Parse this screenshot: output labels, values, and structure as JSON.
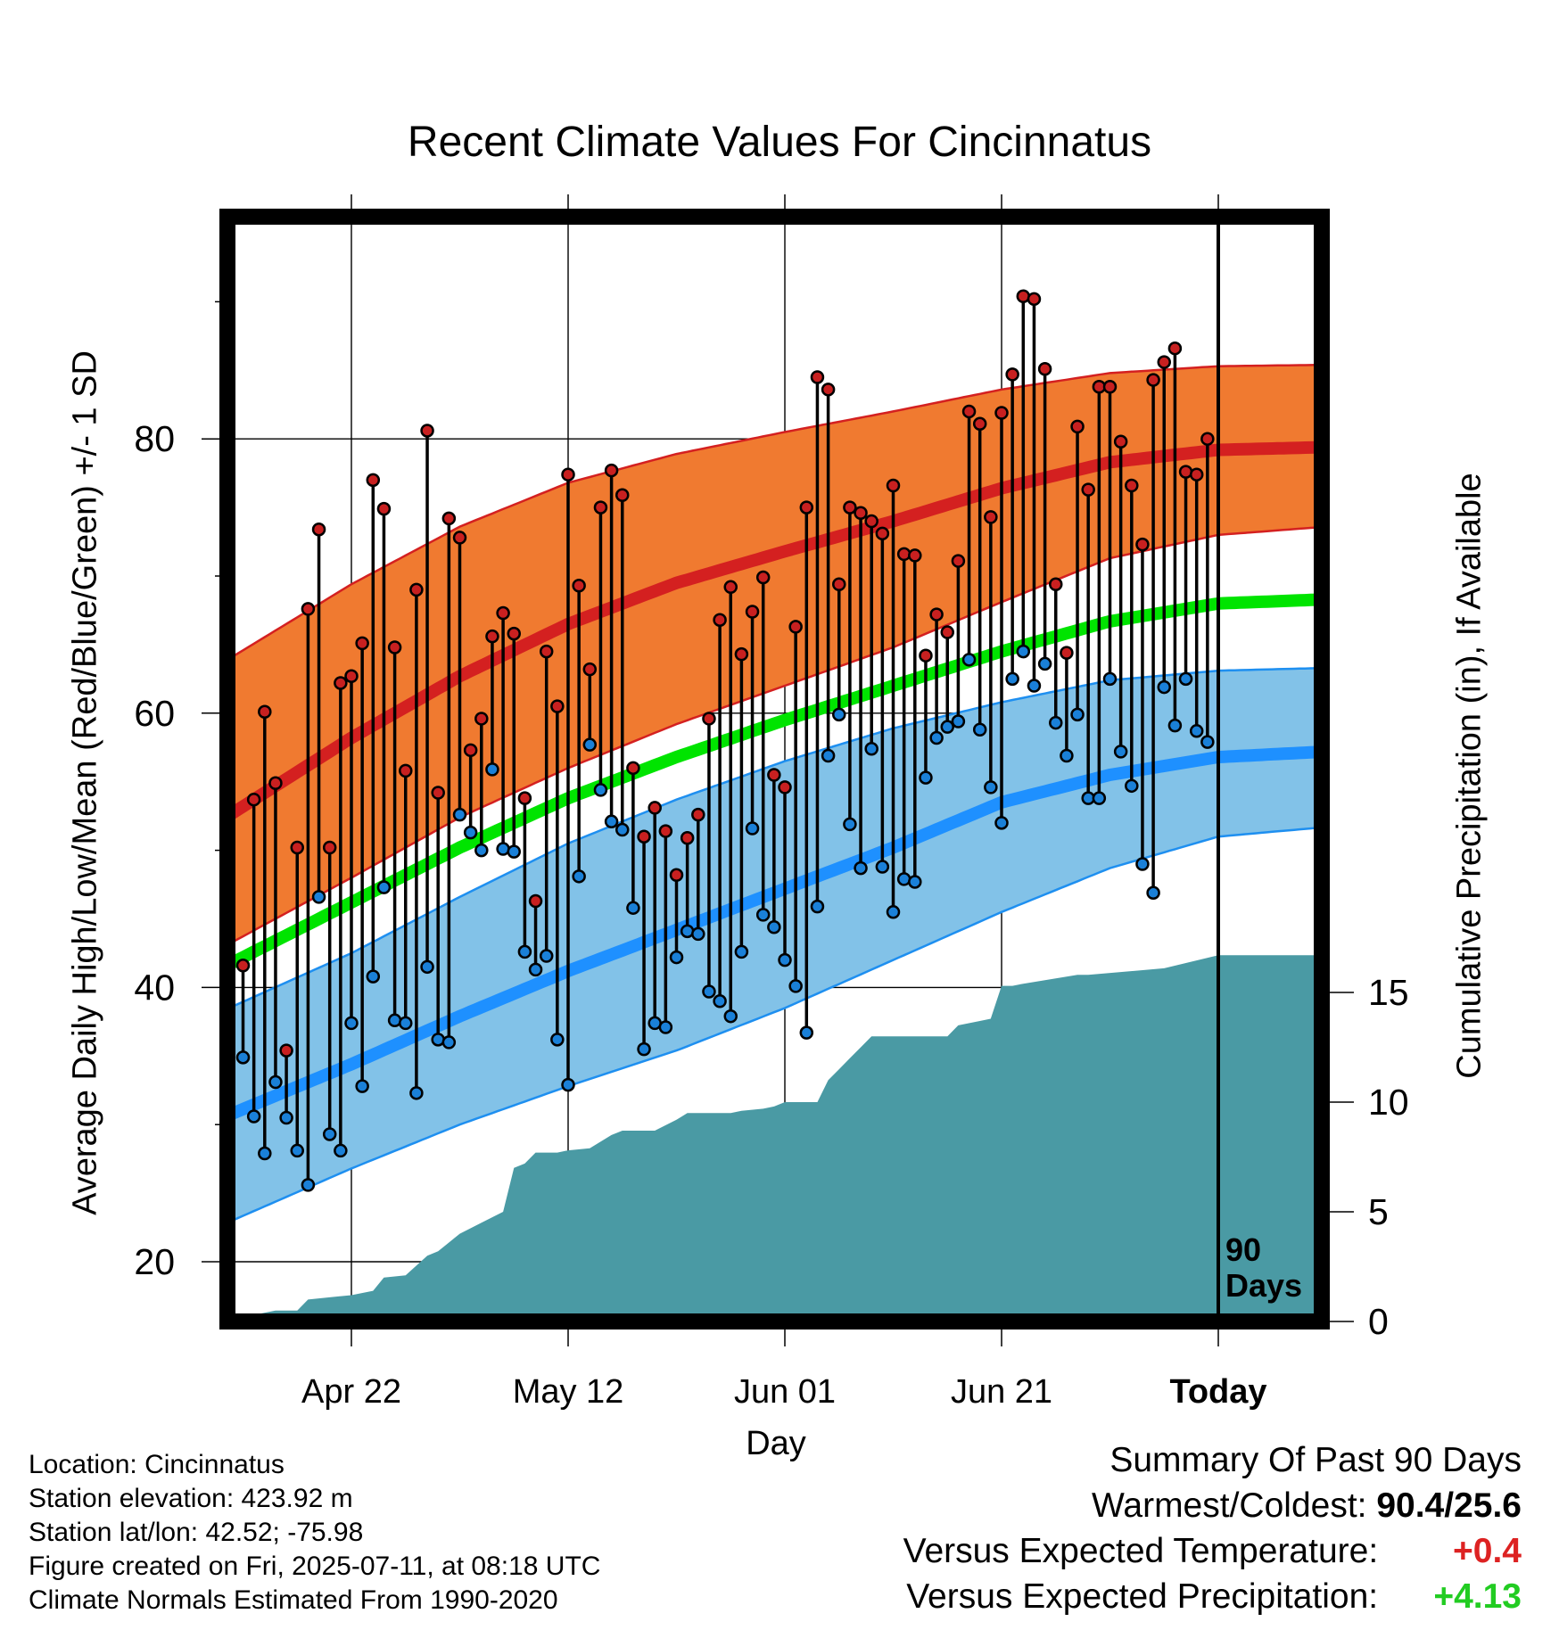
{
  "title": "Recent Climate Values For Cincinnatus",
  "axes": {
    "ylabel_left": "Average Daily High/Low/Mean (Red/Blue/Green) +/- 1 SD",
    "ylabel_right": "Cumulative Precipitation (in), If Available",
    "xlabel": "Day"
  },
  "today_marker": {
    "label_line1": "90",
    "label_line2": "Days"
  },
  "info": {
    "location": "Location: Cincinnatus",
    "elevation": "Station elevation: 423.92 m",
    "latlon": "Station lat/lon: 42.52; -75.98",
    "created": "Figure created on Fri, 2025-07-11, at 08:18 UTC",
    "normals": "Climate Normals Estimated From 1990-2020"
  },
  "summary": {
    "heading": "Summary Of Past 90 Days",
    "warmest_label": "Warmest/Coldest:",
    "warmest_value": "90.4/25.6",
    "temp_label": "Versus Expected Temperature:",
    "temp_value": "+0.4",
    "prcp_label": "Versus Expected Precipitation:",
    "prcp_value": "+4.13"
  },
  "colors": {
    "high_band": "#f07a30",
    "high_line": "#d42020",
    "mean_line": "#00e400",
    "low_band": "#82c2e8",
    "low_line": "#1e90ff",
    "precip_fill": "#4a9aa4",
    "high_marker": "#c82020",
    "low_marker": "#1a80d8"
  },
  "chart_data": {
    "type": "line",
    "x_ticks": [
      "Apr 22",
      "May 12",
      "Jun 01",
      "Jun 21",
      "Today"
    ],
    "x_tick_day": [
      0,
      20,
      40,
      60,
      80
    ],
    "x_range_days": [
      -11,
      9
    ],
    "y_left": {
      "ticks": [
        20,
        40,
        60,
        80
      ],
      "range": [
        16,
        95
      ]
    },
    "y_right": {
      "ticks": [
        0,
        5,
        10,
        15
      ],
      "range": [
        0,
        31.4
      ]
    },
    "grid": true,
    "normal_high": {
      "days": [
        -11,
        0,
        10,
        20,
        30,
        40,
        50,
        60,
        70,
        80,
        90
      ],
      "mean": [
        52.7,
        58.2,
        62.7,
        66.5,
        69.5,
        71.8,
        74.0,
        76.4,
        78.3,
        79.2,
        79.4
      ],
      "upper": [
        64.1,
        69.4,
        73.6,
        76.8,
        78.9,
        80.5,
        82.0,
        83.6,
        84.8,
        85.3,
        85.4
      ],
      "lower": [
        43.3,
        48.0,
        52.4,
        56.0,
        59.2,
        62.0,
        64.8,
        68.1,
        71.3,
        73.0,
        73.6
      ]
    },
    "normal_mean": {
      "days": [
        -11,
        0,
        10,
        20,
        30,
        40,
        50,
        60,
        70,
        80,
        90
      ],
      "values": [
        41.8,
        46.2,
        50.2,
        53.8,
        56.8,
        59.5,
        62.0,
        64.5,
        66.7,
        68.0,
        68.3
      ]
    },
    "normal_low": {
      "days": [
        -11,
        0,
        10,
        20,
        30,
        40,
        50,
        60,
        70,
        80,
        90
      ],
      "mean": [
        30.8,
        34.4,
        37.9,
        41.2,
        44.2,
        47.2,
        50.2,
        53.5,
        55.5,
        56.8,
        57.2
      ],
      "upper": [
        38.6,
        42.5,
        46.6,
        50.5,
        53.7,
        56.5,
        58.9,
        60.8,
        62.4,
        63.1,
        63.3
      ],
      "lower": [
        23.0,
        26.8,
        30.0,
        32.8,
        35.4,
        38.5,
        42.0,
        45.5,
        48.7,
        51.0,
        51.7
      ]
    },
    "daily": {
      "start_day": -10,
      "high": [
        41.6,
        53.7,
        60.1,
        54.9,
        35.4,
        50.2,
        67.6,
        73.4,
        50.2,
        62.2,
        62.7,
        65.1,
        77.0,
        74.9,
        64.8,
        55.8,
        69.0,
        80.6,
        54.2,
        74.2,
        72.8,
        57.3,
        59.6,
        65.6,
        67.3,
        65.8,
        53.8,
        46.3,
        64.5,
        60.5,
        77.4,
        69.3,
        63.2,
        75.0,
        77.7,
        75.9,
        56.0,
        51.0,
        53.1,
        51.4,
        48.2,
        50.9,
        52.6,
        59.6,
        66.8,
        69.2,
        64.3,
        67.4,
        69.9,
        55.5,
        54.6,
        66.3,
        75.0,
        84.5,
        83.6,
        69.4,
        75.0,
        74.6,
        74.0,
        73.1,
        76.6,
        71.6,
        71.5,
        64.2,
        67.2,
        65.9,
        71.1,
        82.0,
        81.1,
        74.3,
        81.9,
        84.7,
        90.4,
        90.2,
        85.1,
        69.4,
        64.4,
        80.9,
        76.3,
        83.8,
        83.8,
        79.8,
        76.6,
        72.3,
        84.3,
        85.6,
        86.6,
        77.6,
        77.4,
        80.0
      ],
      "low": [
        34.9,
        30.6,
        27.9,
        33.1,
        30.5,
        28.1,
        25.6,
        46.6,
        29.3,
        28.1,
        37.4,
        32.8,
        40.8,
        47.3,
        37.6,
        37.4,
        32.3,
        41.5,
        36.2,
        36.0,
        52.6,
        51.3,
        50.0,
        55.9,
        50.1,
        49.9,
        42.6,
        41.3,
        42.3,
        36.2,
        32.9,
        48.1,
        57.7,
        54.4,
        52.1,
        51.5,
        45.8,
        35.5,
        37.4,
        37.1,
        42.2,
        44.1,
        43.9,
        39.7,
        39.0,
        37.9,
        42.6,
        51.6,
        45.3,
        44.4,
        42.0,
        40.1,
        36.7,
        45.9,
        56.9,
        59.9,
        51.9,
        48.7,
        57.4,
        48.8,
        45.5,
        47.9,
        47.7,
        55.3,
        58.2,
        59.0,
        59.4,
        63.9,
        58.8,
        54.6,
        52.0,
        62.5,
        64.5,
        62.0,
        63.6,
        59.3,
        56.9,
        59.9,
        53.8,
        53.8,
        62.5,
        57.2,
        54.7,
        49.0,
        46.9,
        61.9,
        59.1,
        62.5,
        58.7,
        57.9
      ]
    },
    "precip": {
      "days": [
        -11,
        -9,
        -7,
        -5,
        -4,
        -2,
        0,
        2,
        3,
        5,
        7,
        8,
        10,
        12,
        14,
        15,
        16,
        17,
        19,
        20,
        22,
        24,
        25,
        28,
        30,
        31,
        35,
        36,
        38,
        39,
        40,
        43,
        44,
        45,
        46,
        47,
        48,
        55,
        56,
        58,
        59,
        60,
        61,
        62,
        67,
        68,
        75,
        80,
        90
      ],
      "values": [
        0,
        0.3,
        0.5,
        0.5,
        1.0,
        1.1,
        1.2,
        1.4,
        2.0,
        2.1,
        3.0,
        3.2,
        4.0,
        4.5,
        5.0,
        7.0,
        7.2,
        7.7,
        7.7,
        7.8,
        7.9,
        8.5,
        8.7,
        8.7,
        9.2,
        9.5,
        9.5,
        9.6,
        9.7,
        9.8,
        10.0,
        10.0,
        11.0,
        11.5,
        12.0,
        12.5,
        13.0,
        13.0,
        13.5,
        13.7,
        13.8,
        15.3,
        15.3,
        15.4,
        15.8,
        15.8,
        16.1,
        16.7,
        16.7
      ]
    }
  }
}
